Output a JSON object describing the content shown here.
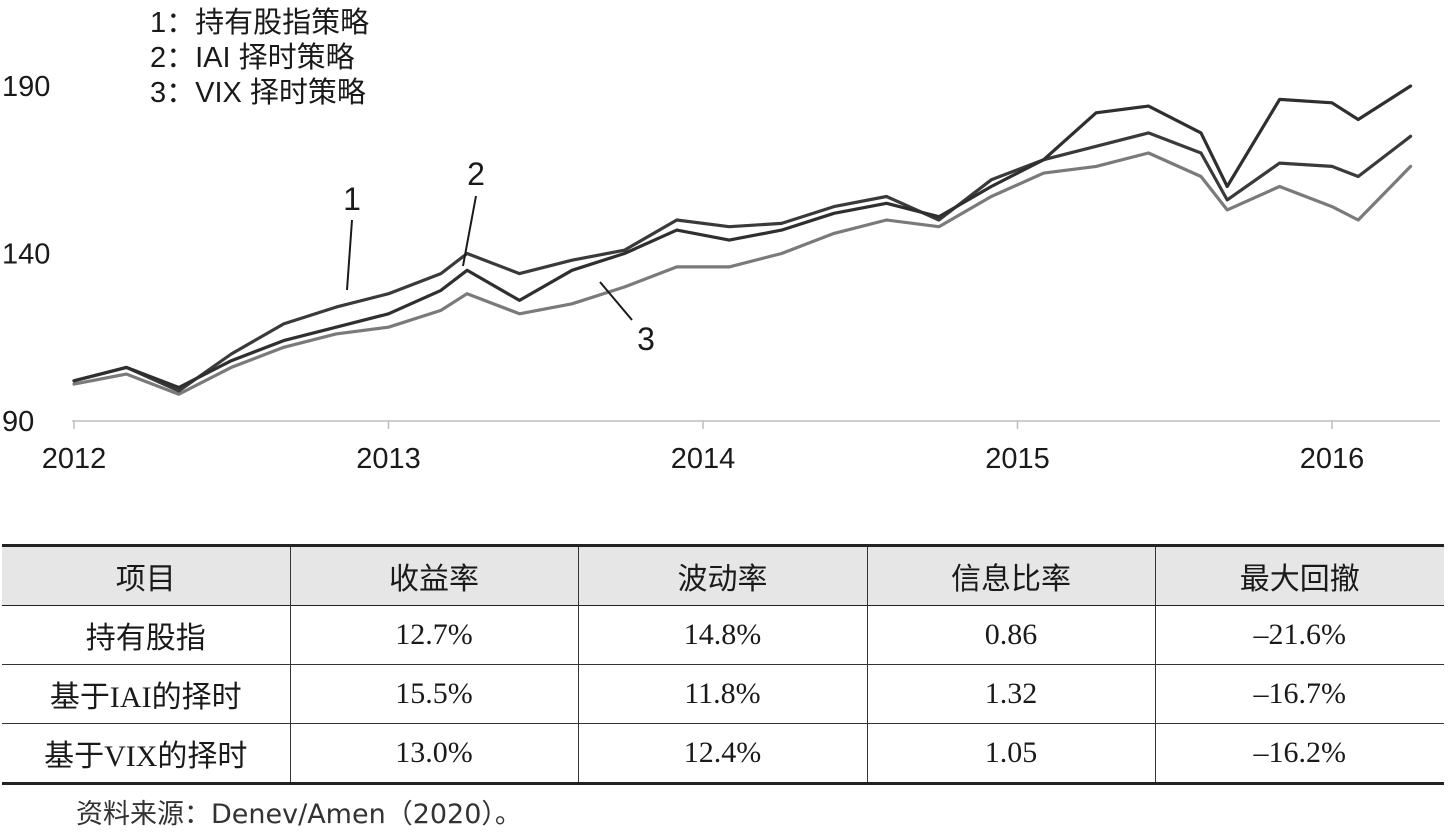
{
  "chart_data": {
    "type": "line",
    "x_tick_labels": [
      "2012",
      "2013",
      "2014",
      "2015",
      "2016"
    ],
    "y_tick_labels": [
      "90",
      "140",
      "190"
    ],
    "xlim": [
      "2012-01",
      "2016-04"
    ],
    "ylim": [
      90,
      190
    ],
    "legend": [
      "1：持有股指策略",
      "2：IAI 择时策略",
      "3：VIX 择时策略"
    ],
    "legend_position": "top-left",
    "grid": false,
    "callouts": [
      "1",
      "2",
      "3"
    ],
    "colors": [
      "#3a3a3a",
      "#2f2f2f",
      "#7a7a7a"
    ],
    "series": [
      {
        "name": "1",
        "x": [
          "2012-01",
          "2012-03",
          "2012-05",
          "2012-07",
          "2012-09",
          "2012-11",
          "2013-01",
          "2013-03",
          "2013-04",
          "2013-06",
          "2013-08",
          "2013-10",
          "2013-12",
          "2014-02",
          "2014-04",
          "2014-06",
          "2014-08",
          "2014-10",
          "2014-12",
          "2015-02",
          "2015-04",
          "2015-06",
          "2015-08",
          "2015-09",
          "2015-11",
          "2016-01",
          "2016-02",
          "2016-04"
        ],
        "y": [
          102,
          106,
          99,
          110,
          119,
          124,
          128,
          134,
          140,
          134,
          138,
          141,
          150,
          148,
          149,
          154,
          157,
          150,
          162,
          168,
          172,
          176,
          170,
          156,
          167,
          166,
          163,
          175
        ]
      },
      {
        "name": "2",
        "x": [
          "2012-01",
          "2012-03",
          "2012-05",
          "2012-07",
          "2012-09",
          "2012-11",
          "2013-01",
          "2013-03",
          "2013-04",
          "2013-06",
          "2013-08",
          "2013-10",
          "2013-12",
          "2014-02",
          "2014-04",
          "2014-06",
          "2014-08",
          "2014-10",
          "2014-12",
          "2015-02",
          "2015-04",
          "2015-06",
          "2015-08",
          "2015-09",
          "2015-11",
          "2016-01",
          "2016-02",
          "2016-04"
        ],
        "y": [
          102,
          106,
          100,
          108,
          114,
          118,
          122,
          129,
          135,
          126,
          135,
          140,
          147,
          144,
          147,
          152,
          155,
          151,
          160,
          168,
          182,
          184,
          176,
          160,
          186,
          185,
          180,
          190
        ]
      },
      {
        "name": "3",
        "x": [
          "2012-01",
          "2012-03",
          "2012-05",
          "2012-07",
          "2012-09",
          "2012-11",
          "2013-01",
          "2013-03",
          "2013-04",
          "2013-06",
          "2013-08",
          "2013-10",
          "2013-12",
          "2014-02",
          "2014-04",
          "2014-06",
          "2014-08",
          "2014-10",
          "2014-12",
          "2015-02",
          "2015-04",
          "2015-06",
          "2015-08",
          "2015-09",
          "2015-11",
          "2016-01",
          "2016-02",
          "2016-04"
        ],
        "y": [
          101,
          104,
          98,
          106,
          112,
          116,
          118,
          123,
          128,
          122,
          125,
          130,
          136,
          136,
          140,
          146,
          150,
          148,
          157,
          164,
          166,
          170,
          163,
          153,
          160,
          154,
          150,
          166
        ]
      }
    ]
  },
  "table": {
    "headers": [
      "项目",
      "收益率",
      "波动率",
      "信息比率",
      "最大回撤"
    ],
    "rows": [
      [
        "持有股指",
        "12.7%",
        "14.8%",
        "0.86",
        "–21.6%"
      ],
      [
        "基于IAI的择时",
        "15.5%",
        "11.8%",
        "1.32",
        "–16.7%"
      ],
      [
        "基于VIX的择时",
        "13.0%",
        "12.4%",
        "1.05",
        "–16.2%"
      ]
    ]
  },
  "source": "资料来源：Denev/Amen（2020）。"
}
